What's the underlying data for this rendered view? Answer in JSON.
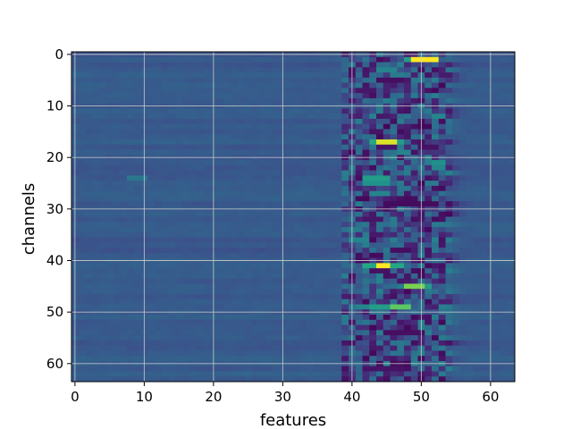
{
  "chart_data": {
    "type": "heatmap",
    "title": "",
    "xlabel": "features",
    "ylabel": "channels",
    "rows": 64,
    "cols": 64,
    "xlim": [
      -0.5,
      63.5
    ],
    "ylim": [
      63.5,
      -0.5
    ],
    "x_ticks": [
      0,
      10,
      20,
      30,
      40,
      50,
      60
    ],
    "y_ticks": [
      0,
      10,
      20,
      30,
      40,
      50,
      60
    ],
    "grid": true,
    "colormap": "viridis",
    "background_level": 0.28,
    "active_band": {
      "col_start": 39,
      "col_end": 54,
      "description_level_range": [
        0.0,
        1.0
      ]
    },
    "hotspots": [
      {
        "row": 1,
        "col_start": 49,
        "col_end": 52,
        "value": 1.0
      },
      {
        "row": 1,
        "col_start": 48,
        "col_end": 48,
        "value": 0.55
      },
      {
        "row": 3,
        "col_start": 44,
        "col_end": 46,
        "value": 0.45
      },
      {
        "row": 12,
        "col_start": 52,
        "col_end": 53,
        "value": 0.45
      },
      {
        "row": 17,
        "col_start": 44,
        "col_end": 46,
        "value": 0.95
      },
      {
        "row": 17,
        "col_start": 43,
        "col_end": 43,
        "value": 0.6
      },
      {
        "row": 17,
        "col_start": 47,
        "col_end": 47,
        "value": 0.55
      },
      {
        "row": 19,
        "col_start": 47,
        "col_end": 48,
        "value": 0.45
      },
      {
        "row": 21,
        "col_start": 52,
        "col_end": 53,
        "value": 0.5
      },
      {
        "row": 22,
        "col_start": 52,
        "col_end": 53,
        "value": 0.45
      },
      {
        "row": 24,
        "col_start": 42,
        "col_end": 45,
        "value": 0.55
      },
      {
        "row": 25,
        "col_start": 42,
        "col_end": 45,
        "value": 0.5
      },
      {
        "row": 24,
        "col_start": 8,
        "col_end": 10,
        "value": 0.4
      },
      {
        "row": 27,
        "col_start": 43,
        "col_end": 45,
        "value": 0.45
      },
      {
        "row": 36,
        "col_start": 40,
        "col_end": 42,
        "value": 0.45
      },
      {
        "row": 41,
        "col_start": 44,
        "col_end": 45,
        "value": 1.0
      },
      {
        "row": 41,
        "col_start": 42,
        "col_end": 43,
        "value": 0.6
      },
      {
        "row": 41,
        "col_start": 46,
        "col_end": 47,
        "value": 0.6
      },
      {
        "row": 45,
        "col_start": 48,
        "col_end": 50,
        "value": 0.8
      },
      {
        "row": 45,
        "col_start": 51,
        "col_end": 51,
        "value": 0.55
      },
      {
        "row": 49,
        "col_start": 46,
        "col_end": 48,
        "value": 0.75
      },
      {
        "row": 49,
        "col_start": 43,
        "col_end": 45,
        "value": 0.55
      },
      {
        "row": 49,
        "col_start": 41,
        "col_end": 42,
        "value": 0.45
      }
    ],
    "dark_cells": [
      {
        "row": 5,
        "col_start": 44,
        "col_end": 47,
        "value": 0.05
      },
      {
        "row": 7,
        "col_start": 41,
        "col_end": 43,
        "value": 0.08
      },
      {
        "row": 18,
        "col_start": 50,
        "col_end": 52,
        "value": 0.06
      },
      {
        "row": 29,
        "col_start": 45,
        "col_end": 52,
        "value": 0.04
      },
      {
        "row": 32,
        "col_start": 42,
        "col_end": 44,
        "value": 0.08
      },
      {
        "row": 38,
        "col_start": 46,
        "col_end": 48,
        "value": 0.05
      },
      {
        "row": 42,
        "col_start": 43,
        "col_end": 45,
        "value": 0.06
      },
      {
        "row": 54,
        "col_start": 45,
        "col_end": 50,
        "value": 0.05
      },
      {
        "row": 61,
        "col_start": 42,
        "col_end": 46,
        "value": 0.07
      }
    ]
  }
}
